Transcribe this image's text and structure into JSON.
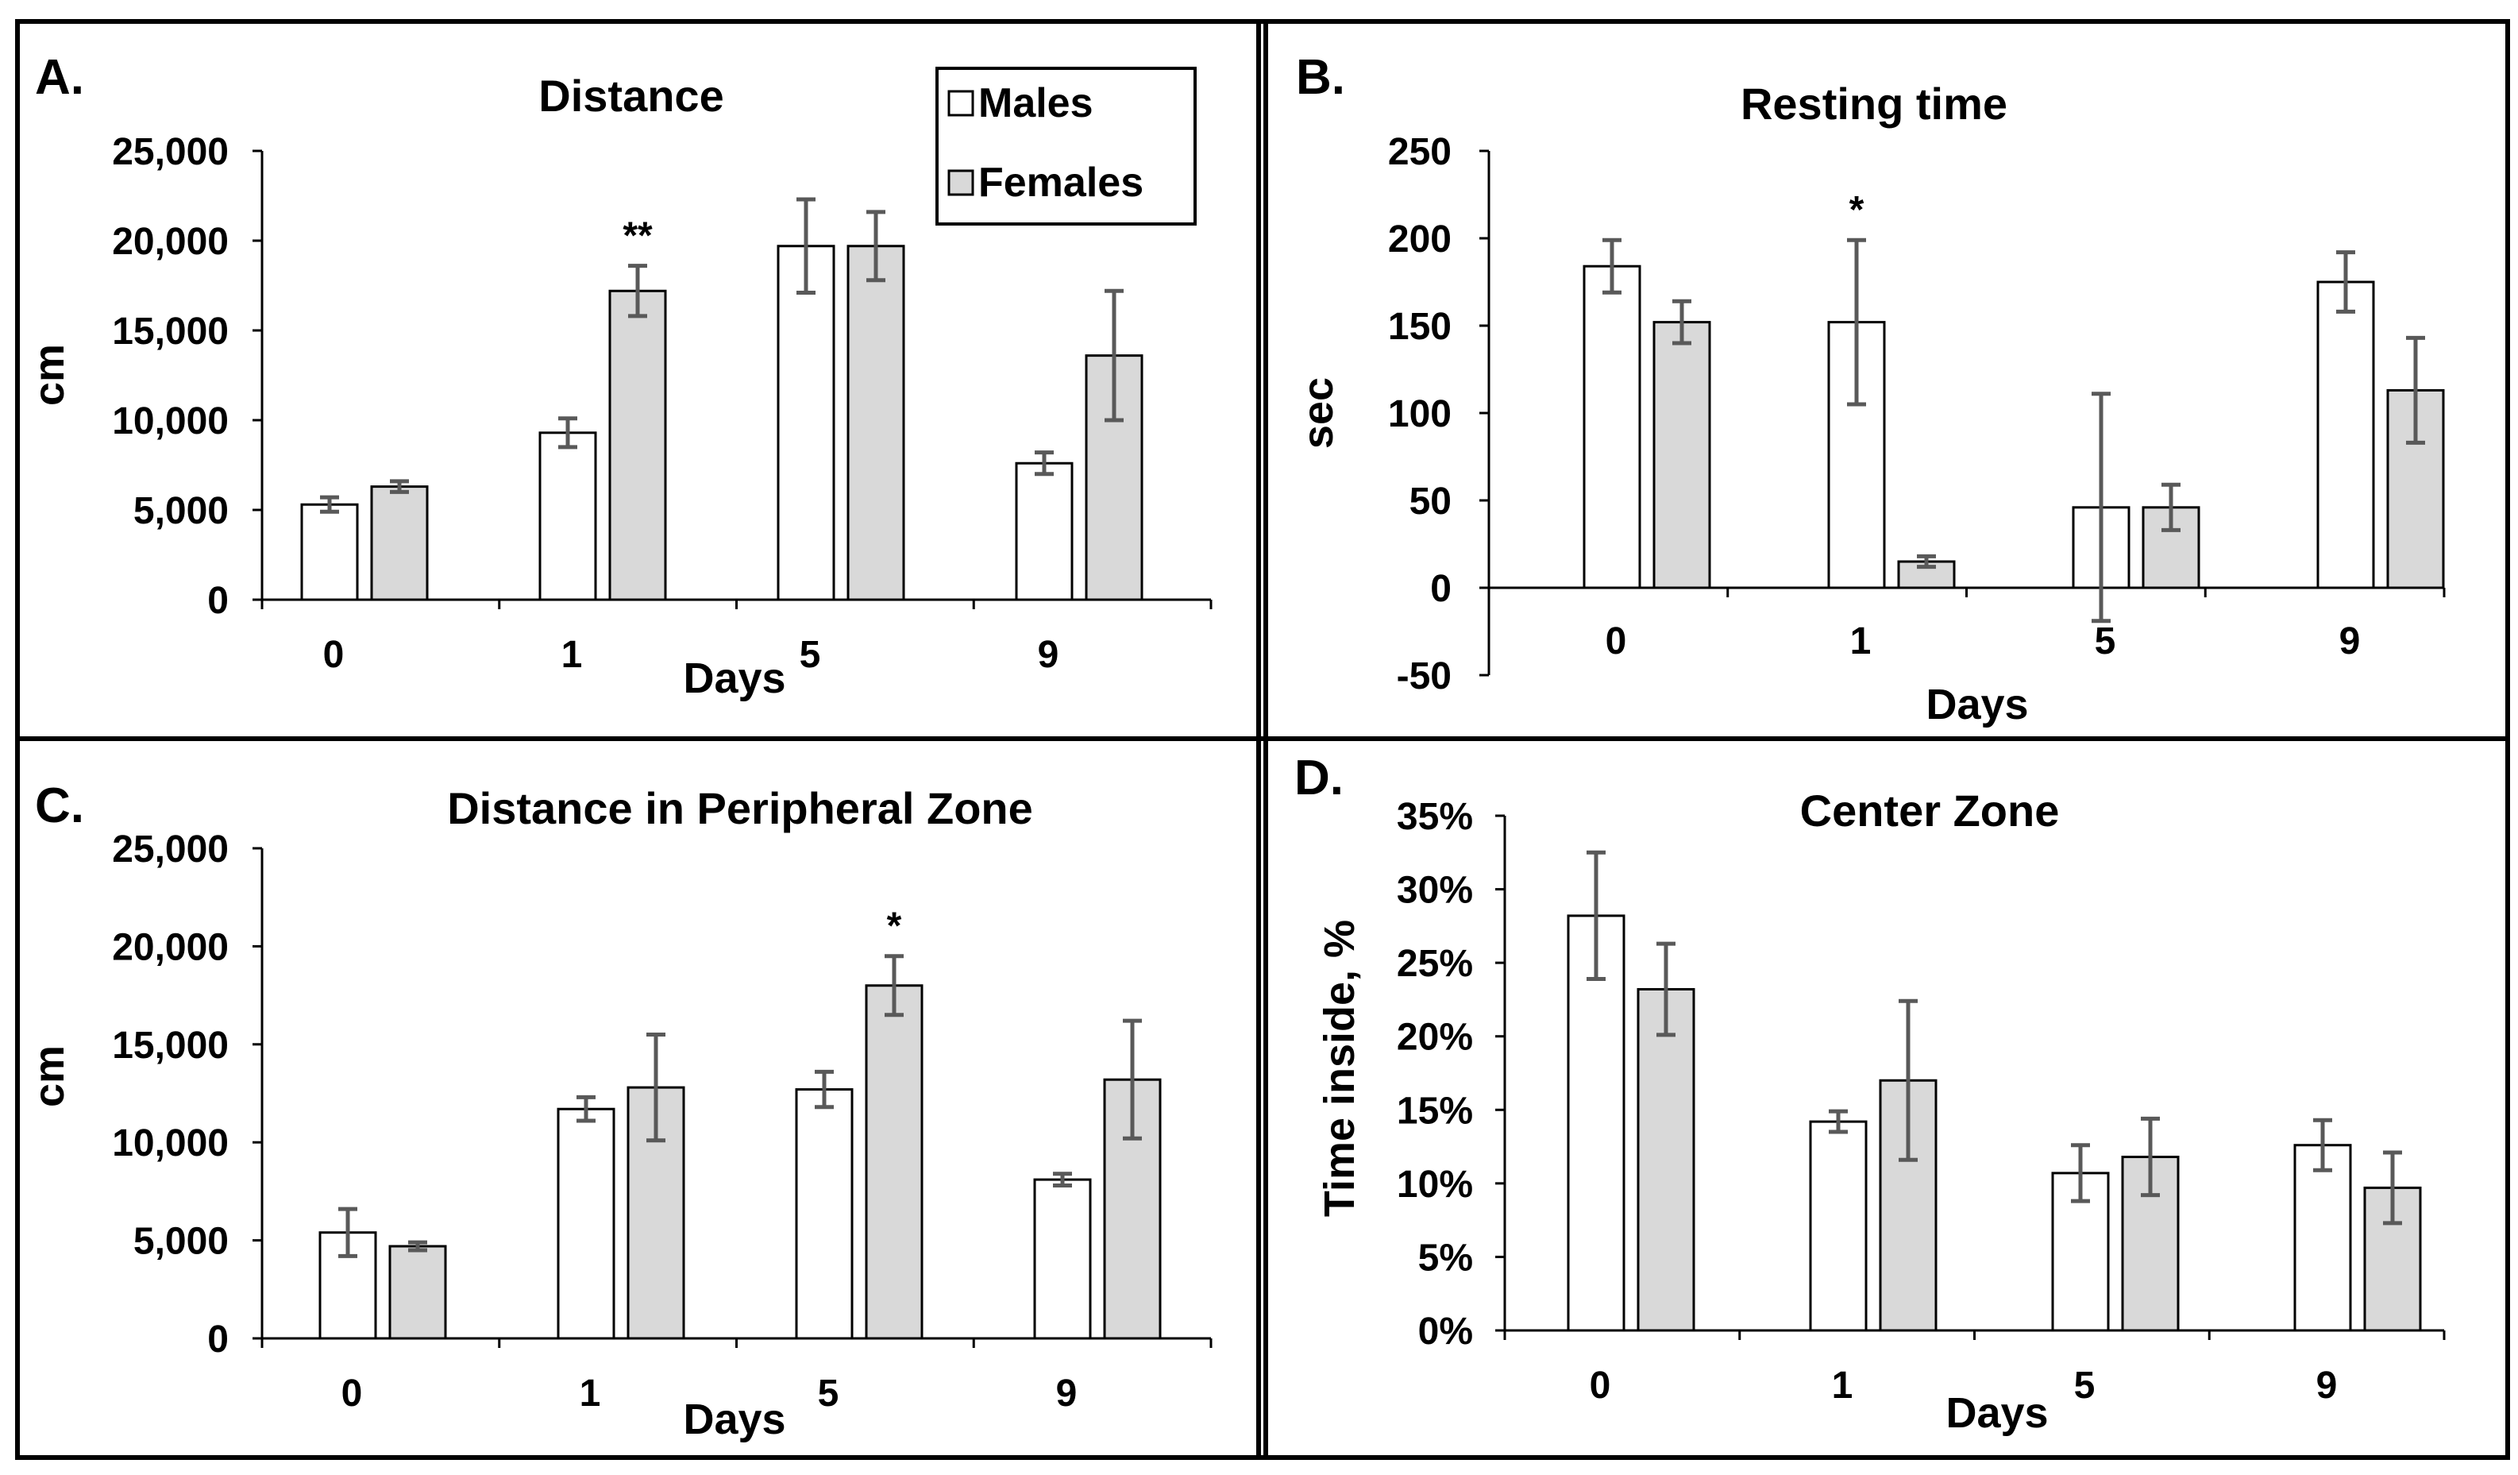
{
  "colors": {
    "males_fill": "#ffffff",
    "females_fill": "#d9d9d9",
    "error_bar": "#595959",
    "frame": "#000000"
  },
  "legend": {
    "males": "Males",
    "females": "Females"
  },
  "chart_data": [
    {
      "type": "bar",
      "panel_letter": "A.",
      "title": "Distance",
      "xlabel": "Days",
      "ylabel": "cm",
      "categories": [
        "0",
        "1",
        "5",
        "9"
      ],
      "ylim": [
        0,
        25000
      ],
      "yticks": [
        0,
        5000,
        10000,
        15000,
        20000,
        25000
      ],
      "ytick_labels": [
        "0",
        "5,000",
        "10,000",
        "15,000",
        "20,000",
        "25,000"
      ],
      "series": [
        {
          "name": "Males",
          "values": [
            5300,
            9300,
            19700,
            7600
          ],
          "errors": [
            400,
            800,
            2600,
            600
          ]
        },
        {
          "name": "Females",
          "values": [
            6300,
            17200,
            19700,
            13600
          ],
          "errors": [
            300,
            1400,
            1900,
            3600
          ]
        }
      ],
      "annotations": [
        {
          "category": "1",
          "series": "Females",
          "text": "**"
        }
      ]
    },
    {
      "type": "bar",
      "panel_letter": "B.",
      "title": "Resting time",
      "xlabel": "Days",
      "ylabel": "sec",
      "categories": [
        "0",
        "1",
        "5",
        "9"
      ],
      "ylim": [
        -50,
        250
      ],
      "yticks": [
        -50,
        0,
        50,
        100,
        150,
        200,
        250
      ],
      "ytick_labels": [
        "-50",
        "0",
        "50",
        "100",
        "150",
        "200",
        "250"
      ],
      "series": [
        {
          "name": "Males",
          "values": [
            184,
            152,
            46,
            175
          ],
          "errors": [
            15,
            47,
            65,
            17
          ]
        },
        {
          "name": "Females",
          "values": [
            152,
            15,
            46,
            113
          ],
          "errors": [
            12,
            3,
            13,
            30
          ]
        }
      ],
      "annotations": [
        {
          "category": "1",
          "series": "Males",
          "text": "*"
        }
      ]
    },
    {
      "type": "bar",
      "panel_letter": "C.",
      "title": "Distance in Peripheral Zone",
      "xlabel": "Days",
      "ylabel": "cm",
      "categories": [
        "0",
        "1",
        "5",
        "9"
      ],
      "ylim": [
        0,
        25000
      ],
      "yticks": [
        0,
        5000,
        10000,
        15000,
        20000,
        25000
      ],
      "ytick_labels": [
        "0",
        "5,000",
        "10,000",
        "15,000",
        "20,000",
        "25,000"
      ],
      "series": [
        {
          "name": "Males",
          "values": [
            5400,
            11700,
            12700,
            8100
          ],
          "errors": [
            1200,
            600,
            900,
            300
          ]
        },
        {
          "name": "Females",
          "values": [
            4700,
            12800,
            18000,
            13200
          ],
          "errors": [
            200,
            2700,
            1500,
            3000
          ]
        }
      ],
      "annotations": [
        {
          "category": "5",
          "series": "Females",
          "text": "*"
        }
      ]
    },
    {
      "type": "bar",
      "panel_letter": "D.",
      "title": "Center Zone",
      "xlabel": "Days",
      "ylabel": "Time inside, %",
      "categories": [
        "0",
        "1",
        "5",
        "9"
      ],
      "ylim": [
        0,
        35
      ],
      "yticks": [
        0,
        5,
        10,
        15,
        20,
        25,
        30,
        35
      ],
      "ytick_labels": [
        "0%",
        "5%",
        "10%",
        "15%",
        "20%",
        "25%",
        "30%",
        "35%"
      ],
      "series": [
        {
          "name": "Males",
          "values": [
            28.2,
            14.2,
            10.7,
            12.6
          ],
          "errors": [
            4.3,
            0.7,
            1.9,
            1.7
          ]
        },
        {
          "name": "Females",
          "values": [
            23.2,
            17.0,
            11.8,
            9.7
          ],
          "errors": [
            3.1,
            5.4,
            2.6,
            2.4
          ]
        }
      ],
      "annotations": []
    }
  ]
}
